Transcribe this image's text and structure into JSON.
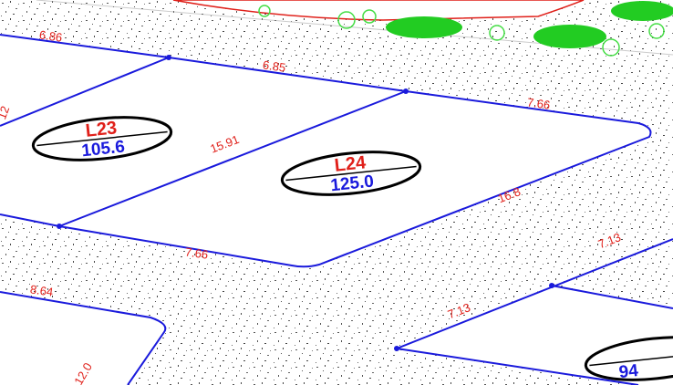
{
  "lots": [
    {
      "id": "L23",
      "area": "105.6"
    },
    {
      "id": "L24",
      "area": "125.0"
    },
    {
      "area": "94"
    }
  ],
  "dimensions": [
    "6.86",
    "6.85",
    "7.66",
    "15.91",
    "16.8",
    "7.66",
    "7.13",
    "7.13",
    "8.64",
    "12",
    "12.0"
  ]
}
